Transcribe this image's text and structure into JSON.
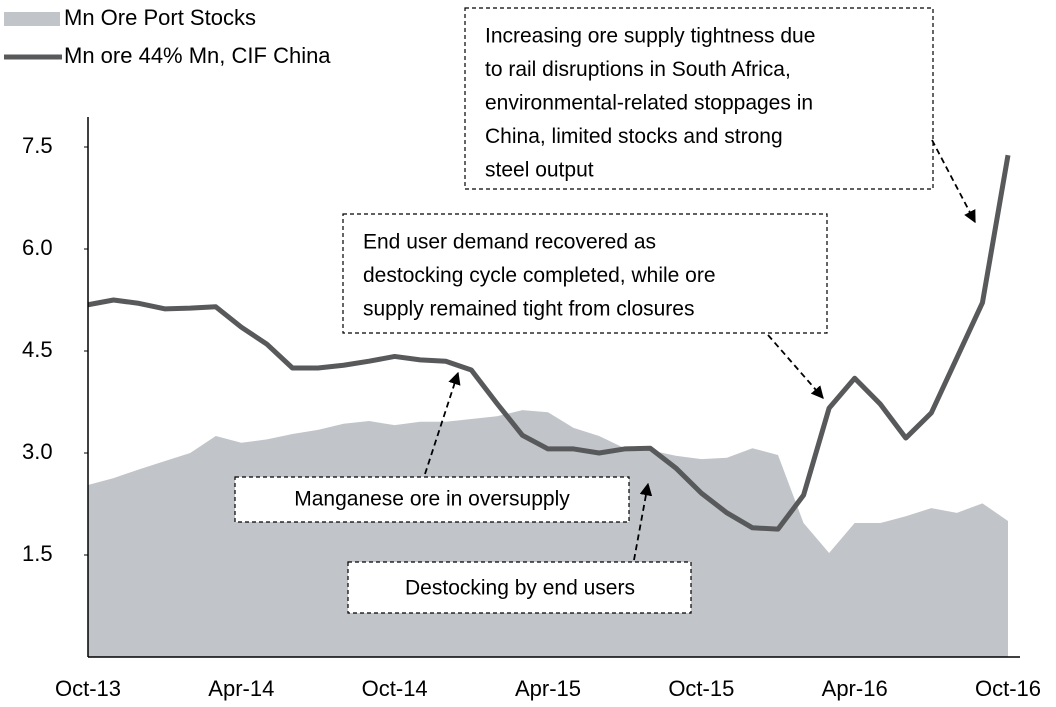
{
  "chart_data": {
    "type": "line",
    "categories": [
      "Oct-13",
      null,
      null,
      null,
      null,
      null,
      "Apr-14",
      null,
      null,
      null,
      null,
      null,
      "Oct-14",
      null,
      null,
      null,
      null,
      null,
      "Apr-15",
      null,
      null,
      null,
      null,
      null,
      "Oct-15",
      null,
      null,
      null,
      null,
      null,
      "Apr-16",
      null,
      null,
      null,
      null,
      null,
      "Oct-16"
    ],
    "series": [
      {
        "name": "Mn Ore Port Stocks",
        "type": "area",
        "color": "#c1c5c9",
        "values": [
          2.53,
          2.63,
          2.76,
          2.88,
          3.0,
          3.25,
          3.15,
          3.2,
          3.28,
          3.34,
          3.43,
          3.47,
          3.41,
          3.46,
          3.46,
          3.5,
          3.54,
          3.63,
          3.6,
          3.37,
          3.25,
          3.07,
          3.04,
          2.96,
          2.91,
          2.93,
          3.07,
          2.97,
          1.97,
          1.53,
          1.97,
          1.97,
          2.07,
          2.19,
          2.12,
          2.26,
          2.0
        ]
      },
      {
        "name": "Mn ore 44% Mn, CIF China",
        "type": "line",
        "color": "#58595b",
        "values": [
          5.18,
          5.25,
          5.2,
          5.12,
          5.13,
          5.15,
          4.85,
          4.6,
          4.25,
          4.25,
          4.29,
          4.35,
          4.42,
          4.37,
          4.35,
          4.22,
          3.73,
          3.26,
          3.06,
          3.06,
          3.0,
          3.06,
          3.07,
          2.78,
          2.41,
          2.12,
          1.9,
          1.88,
          2.38,
          3.66,
          4.1,
          3.72,
          3.22,
          3.59,
          4.4,
          5.21,
          7.38
        ]
      }
    ],
    "ylim": [
      0,
      8
    ],
    "yticks": [
      1.5,
      {
        "value": 3,
        "label": "3.0"
      },
      4.5,
      {
        "value": 6,
        "label": "6.0"
      },
      7.5
    ],
    "grid": false,
    "legend": "top-left",
    "annotations": [
      {
        "lines": [
          "Increasing ore supply tightness due",
          "to rail disruptions in South Africa,",
          "environmental-related stoppages in",
          "China, limited stocks and strong",
          "steel output"
        ]
      },
      {
        "lines": [
          "End user demand recovered as",
          "destocking cycle completed, while ore",
          "supply remained tight from closures"
        ]
      },
      {
        "lines": [
          "Manganese ore in oversupply"
        ]
      },
      {
        "lines": [
          "Destocking by end users"
        ]
      }
    ]
  }
}
